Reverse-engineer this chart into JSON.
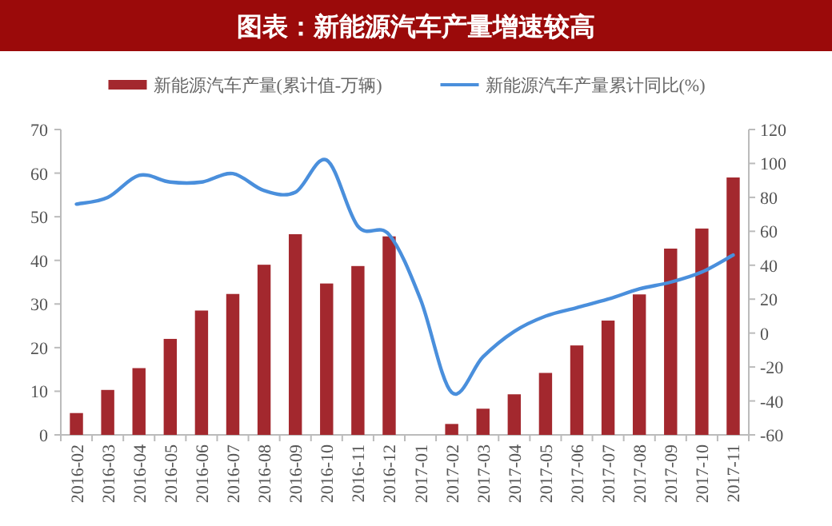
{
  "chart_data": {
    "type": "bar",
    "title": "图表：新能源汽车产量增速较高",
    "categories": [
      "2016-02",
      "2016-03",
      "2016-04",
      "2016-05",
      "2016-06",
      "2016-07",
      "2016-08",
      "2016-09",
      "2016-10",
      "2016-11",
      "2016-12",
      "2017-01",
      "2017-02",
      "2017-03",
      "2017-04",
      "2017-05",
      "2017-06",
      "2017-07",
      "2017-08",
      "2017-09",
      "2017-10",
      "2017-11"
    ],
    "series": [
      {
        "name": "新能源汽车产量(累计值-万辆)",
        "color": "#a3282e",
        "values": [
          5,
          10.3,
          15.3,
          22,
          28.5,
          32.3,
          39,
          46,
          34.7,
          38.7,
          45.5,
          null,
          2.5,
          6,
          9.3,
          14.2,
          20.5,
          26.2,
          32.2,
          42.7,
          47.3,
          59
        ]
      },
      {
        "name": "新能源汽车产量累计同比(%)",
        "type": "line",
        "axis": "y2",
        "color": "#4a8fdc",
        "values": [
          76,
          80,
          93,
          89,
          89,
          94,
          84,
          83,
          102,
          63,
          58,
          20,
          -35,
          -14,
          1,
          10,
          15,
          20,
          26,
          30,
          36,
          46
        ]
      }
    ],
    "ylim": [
      0,
      70
    ],
    "yticks": [
      0,
      10,
      20,
      30,
      40,
      50,
      60,
      70
    ],
    "y2lim": [
      -60,
      120
    ],
    "y2ticks": [
      -60,
      -40,
      -20,
      0,
      20,
      40,
      60,
      80,
      100,
      120
    ],
    "legend": "top",
    "grid": false
  }
}
